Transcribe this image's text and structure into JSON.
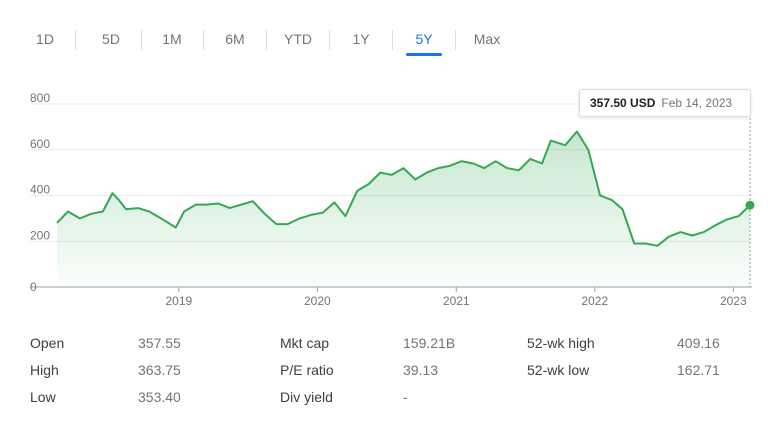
{
  "tabs": [
    {
      "label": "1D",
      "active": false
    },
    {
      "label": "5D",
      "active": false
    },
    {
      "label": "1M",
      "active": false
    },
    {
      "label": "6M",
      "active": false
    },
    {
      "label": "YTD",
      "active": false
    },
    {
      "label": "1Y",
      "active": false
    },
    {
      "label": "5Y",
      "active": true
    },
    {
      "label": "Max",
      "active": false
    }
  ],
  "tooltip": {
    "price": "357.50 USD",
    "date": "Feb 14, 2023"
  },
  "colors": {
    "line": "#34a853",
    "accent": "#1a73e8",
    "grid": "#e8eaed"
  },
  "chart_data": {
    "type": "line",
    "ylim": [
      0,
      800
    ],
    "yticks": [
      0,
      200,
      400,
      600,
      800
    ],
    "ytick_labels": [
      "0",
      "200",
      "400",
      "600",
      "800"
    ],
    "xticks": [
      "2019-01-01",
      "2020-01-01",
      "2021-01-01",
      "2022-01-01",
      "2023-01-01"
    ],
    "xtick_labels": [
      "2019",
      "2020",
      "2021",
      "2022",
      "2023"
    ],
    "xlim": [
      "2018-02-14",
      "2023-02-14"
    ],
    "grid": true,
    "series": [
      {
        "x": [
          "2018-02-14",
          "2018-03-15",
          "2018-04-15",
          "2018-05-15",
          "2018-06-15",
          "2018-07-10",
          "2018-07-27",
          "2018-08-15",
          "2018-09-15",
          "2018-10-15",
          "2018-11-15",
          "2018-12-24",
          "2019-01-15",
          "2019-02-15",
          "2019-03-15",
          "2019-04-15",
          "2019-05-15",
          "2019-06-15",
          "2019-07-15",
          "2019-08-15",
          "2019-09-15",
          "2019-10-15",
          "2019-11-15",
          "2019-12-15",
          "2020-01-15",
          "2020-02-15",
          "2020-03-15",
          "2020-04-15",
          "2020-05-15",
          "2020-06-15",
          "2020-07-15",
          "2020-08-15",
          "2020-09-15",
          "2020-10-15",
          "2020-11-15",
          "2020-12-15",
          "2021-01-15",
          "2021-02-15",
          "2021-03-15",
          "2021-04-15",
          "2021-05-15",
          "2021-06-15",
          "2021-07-15",
          "2021-08-15",
          "2021-09-07",
          "2021-10-15",
          "2021-11-15",
          "2021-12-15",
          "2022-01-15",
          "2022-02-15",
          "2022-03-15",
          "2022-04-15",
          "2022-05-15",
          "2022-06-15",
          "2022-07-15",
          "2022-08-15",
          "2022-09-15",
          "2022-10-15",
          "2022-11-15",
          "2022-12-15",
          "2023-01-15",
          "2023-02-14"
        ],
        "y": [
          280,
          330,
          300,
          320,
          330,
          410,
          380,
          340,
          345,
          330,
          300,
          260,
          330,
          360,
          360,
          365,
          345,
          360,
          375,
          320,
          275,
          275,
          300,
          315,
          325,
          370,
          310,
          420,
          450,
          500,
          490,
          520,
          470,
          500,
          520,
          530,
          550,
          540,
          520,
          550,
          520,
          510,
          560,
          540,
          640,
          620,
          680,
          600,
          400,
          380,
          340,
          190,
          190,
          180,
          220,
          240,
          225,
          240,
          270,
          295,
          310,
          357.5
        ]
      }
    ]
  }
}
